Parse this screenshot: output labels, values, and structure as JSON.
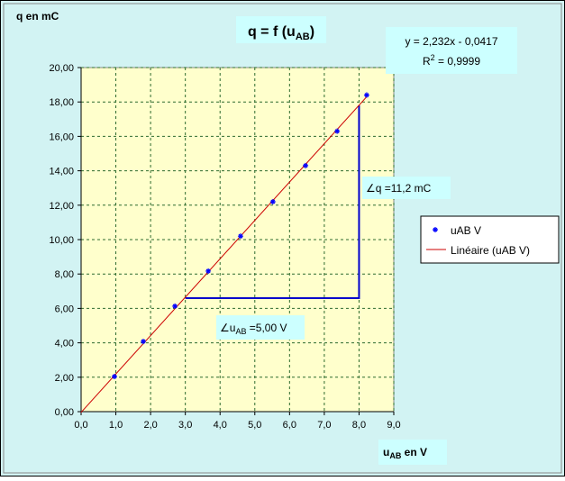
{
  "chart_data": {
    "type": "scatter",
    "title": [
      "q = f (u",
      "AB",
      ")"
    ],
    "y_axis_title": "q en mC",
    "x_axis_title": [
      "u",
      "AB",
      " en V"
    ],
    "equation": "y = 2,232x - 0,0417",
    "r_squared": [
      "R",
      "2",
      " = 0,9999"
    ],
    "annotation_q": "∠q =11,2 mC",
    "annotation_u": [
      "∠u",
      "AB",
      " =5,00 V"
    ],
    "xlim": [
      0,
      9
    ],
    "ylim": [
      0,
      20
    ],
    "xticks": [
      {
        "value": 0,
        "label": "0,0"
      },
      {
        "value": 1,
        "label": "1,0"
      },
      {
        "value": 2,
        "label": "2,0"
      },
      {
        "value": 3,
        "label": "3,0"
      },
      {
        "value": 4,
        "label": "4,0"
      },
      {
        "value": 5,
        "label": "5,0"
      },
      {
        "value": 6,
        "label": "6,0"
      },
      {
        "value": 7,
        "label": "7,0"
      },
      {
        "value": 8,
        "label": "8,0"
      },
      {
        "value": 9,
        "label": "9,0"
      }
    ],
    "yticks": [
      {
        "value": 0,
        "label": "0,00"
      },
      {
        "value": 2,
        "label": "2,00"
      },
      {
        "value": 4,
        "label": "4,00"
      },
      {
        "value": 6,
        "label": "6,00"
      },
      {
        "value": 8,
        "label": "8,00"
      },
      {
        "value": 10,
        "label": "10,00"
      },
      {
        "value": 12,
        "label": "12,00"
      },
      {
        "value": 14,
        "label": "14,00"
      },
      {
        "value": 16,
        "label": "16,00"
      },
      {
        "value": 18,
        "label": "18,00"
      },
      {
        "value": 20,
        "label": "20,00"
      }
    ],
    "grid": true,
    "series": [
      {
        "name": "uAB V",
        "color": "#0000ff",
        "x": [
          0.96,
          1.79,
          2.7,
          3.66,
          4.59,
          5.52,
          6.46,
          7.37,
          8.22
        ],
        "values": [
          2.04,
          4.08,
          6.13,
          8.17,
          10.2,
          12.2,
          14.3,
          16.3,
          18.4
        ]
      },
      {
        "name": "Linéaire (uAB V)",
        "color": "#cc0000",
        "x": [
          0,
          8.22
        ],
        "values": [
          -0.0417,
          18.3
        ]
      }
    ],
    "slope_triangle": {
      "color": "#0000cc",
      "x": [
        3,
        8,
        8
      ],
      "values": [
        6.6,
        6.6,
        17.8
      ]
    }
  }
}
